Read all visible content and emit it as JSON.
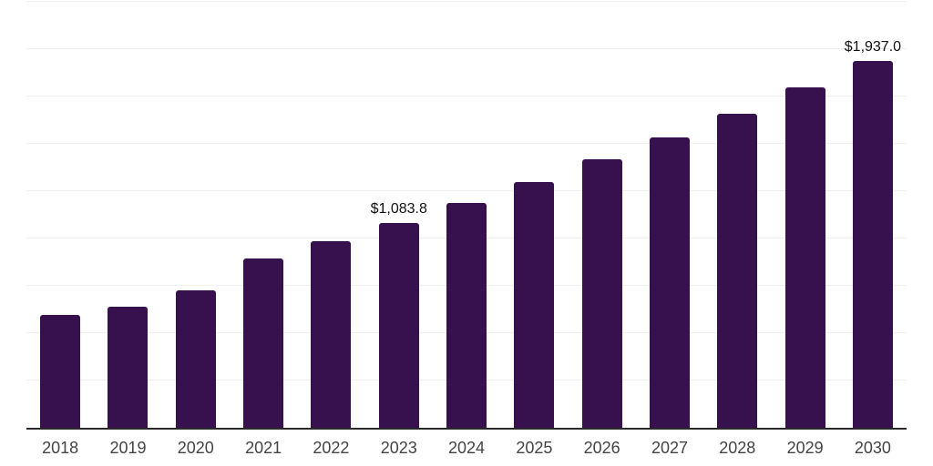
{
  "chart_data": {
    "type": "bar",
    "title": "",
    "xlabel": "",
    "ylabel": "",
    "categories": [
      "2018",
      "2019",
      "2020",
      "2021",
      "2022",
      "2023",
      "2024",
      "2025",
      "2026",
      "2027",
      "2028",
      "2029",
      "2030"
    ],
    "values": [
      597,
      638,
      726,
      894,
      987,
      1083.8,
      1187,
      1296,
      1417,
      1536,
      1657,
      1799,
      1937.0
    ],
    "data_labels": {
      "2023": "$1,083.8",
      "2030": "$1,937.0"
    },
    "ylim": [
      0,
      2250
    ],
    "gridline_interval": 250,
    "grid": "horizontal-only",
    "legend": "none",
    "y_axis_tick_labels": "none",
    "bar_color": "#37114E",
    "gridline_color": "#f0f0f0",
    "axis_line_color": "#2a2a2a",
    "value_label_color": "#111111",
    "category_label_color": "#444444",
    "background_color": "#ffffff"
  }
}
